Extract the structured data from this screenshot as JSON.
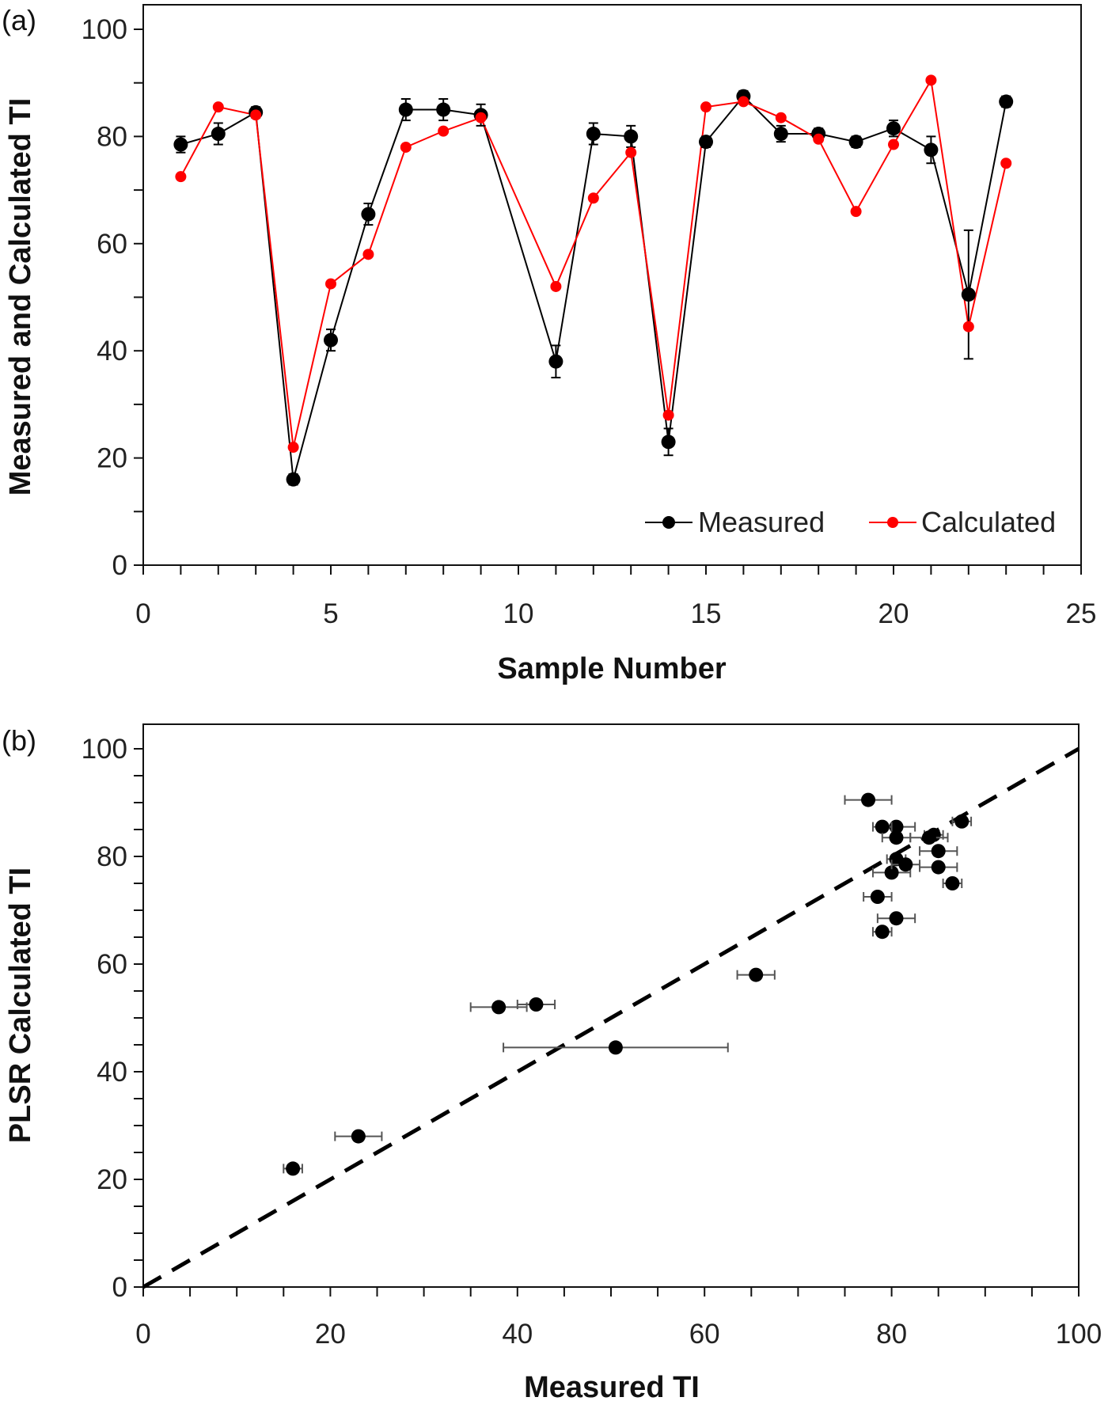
{
  "chart_data": [
    {
      "type": "line",
      "panel_label": "(a)",
      "xlabel": "Sample Number",
      "ylabel": "Measured and Calculated TI",
      "xlim": [
        0,
        25
      ],
      "ylim": [
        0,
        100
      ],
      "xticks": [
        0,
        5,
        10,
        15,
        20,
        25
      ],
      "yticks": [
        0,
        20,
        40,
        60,
        80,
        100
      ],
      "legend_position": "bottom-right",
      "grid": false,
      "x": [
        1,
        2,
        3,
        4,
        5,
        6,
        7,
        8,
        9,
        11,
        12,
        13,
        14,
        15,
        16,
        17,
        18,
        19,
        20,
        21,
        22,
        23
      ],
      "series": [
        {
          "name": "Measured",
          "color": "#000000",
          "values": [
            78.5,
            80.5,
            84.5,
            16,
            42,
            65.5,
            85,
            85,
            84,
            38,
            80.5,
            80,
            23,
            79,
            87.5,
            80.5,
            80.5,
            79,
            81.5,
            77.5,
            50.5,
            86.5
          ],
          "error": [
            1.5,
            2,
            1,
            1,
            2,
            2,
            2,
            2,
            2,
            3,
            2,
            2,
            2.5,
            1,
            1,
            1.5,
            1,
            1,
            1.5,
            2.5,
            12,
            1
          ]
        },
        {
          "name": "Calculated",
          "color": "#ff0000",
          "values": [
            72.5,
            85.5,
            84,
            22,
            52.5,
            58,
            78,
            81,
            83.5,
            52,
            68.5,
            77,
            28,
            85.5,
            86.5,
            83.5,
            79.5,
            66,
            78.5,
            90.5,
            44.5,
            75
          ]
        }
      ]
    },
    {
      "type": "scatter",
      "panel_label": "(b)",
      "xlabel": "Measured TI",
      "ylabel": "PLSR Calculated TI",
      "xlim": [
        0,
        100
      ],
      "ylim": [
        0,
        100
      ],
      "xticks": [
        0,
        20,
        40,
        60,
        80,
        100
      ],
      "yticks": [
        0,
        20,
        40,
        60,
        80,
        100
      ],
      "grid": false,
      "reference_line": {
        "style": "dashed",
        "slope": 1,
        "intercept": 0,
        "color": "#000000"
      },
      "points_source": "pairs of Measured (x, with horizontal error) and Calculated (y) from panel (a)"
    }
  ]
}
